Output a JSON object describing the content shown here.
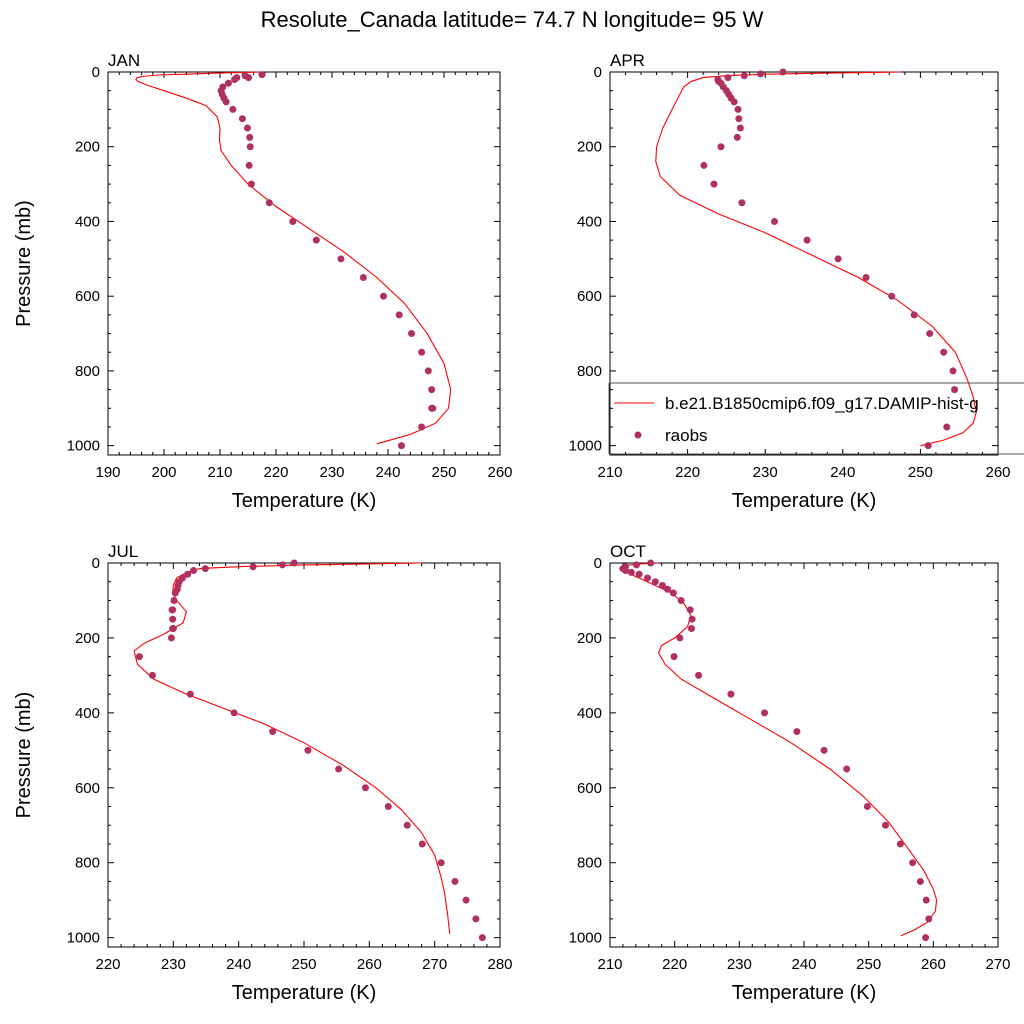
{
  "figure": {
    "title": "Resolute_Canada  latitude= 74.7 N longitude= 95 W"
  },
  "legend": {
    "model_label": "b.e21.B1850cmip6.f09_g17.DAMIP-hist-g",
    "obs_label": "raobs"
  },
  "colors": {
    "model_line": "#ff0000",
    "obs_marker": "#b03060"
  },
  "chart_data": [
    {
      "type": "scatter",
      "title": "JAN",
      "xlabel": "Temperature (K)",
      "ylabel": "Pressure (mb)",
      "xlim": [
        190,
        260
      ],
      "ylim": [
        1025,
        0
      ],
      "xticks": [
        190,
        200,
        210,
        220,
        230,
        240,
        250,
        260
      ],
      "yticks": [
        0,
        200,
        400,
        600,
        800,
        1000
      ],
      "series": [
        {
          "name": "b.e21.B1850cmip6.f09_g17.DAMIP-hist-g",
          "kind": "line",
          "x": [
            217.5,
            212,
            205,
            199,
            196,
            195.1,
            195.0,
            195.3,
            197,
            200,
            204,
            207.5,
            209.5,
            210.0,
            209.9,
            210.2,
            212,
            215,
            220,
            226,
            232,
            238,
            243,
            247,
            250,
            251.2,
            250.8,
            248.5,
            244,
            238
          ],
          "y": [
            0,
            2,
            5,
            8,
            12,
            16,
            20,
            25,
            35,
            50,
            70,
            90,
            120,
            150,
            180,
            210,
            250,
            300,
            360,
            420,
            480,
            550,
            620,
            700,
            780,
            850,
            900,
            940,
            970,
            995
          ]
        },
        {
          "name": "raobs",
          "kind": "scatter",
          "x": [
            217.5,
            214.5,
            215.1,
            213.0,
            212.6,
            211.5,
            210.5,
            210.2,
            210.4,
            210.7,
            211.1,
            212.3,
            214.0,
            214.9,
            215.3,
            215.4,
            215.2,
            215.6,
            218.8,
            223.0,
            227.2,
            231.6,
            235.6,
            239.2,
            242.0,
            244.2,
            246.0,
            247.2,
            247.8,
            248.0,
            247.8,
            246.0,
            242.4
          ],
          "y": [
            7,
            10,
            15,
            15,
            20,
            30,
            40,
            50,
            60,
            70,
            80,
            100,
            125,
            150,
            175,
            200,
            250,
            300,
            350,
            400,
            450,
            500,
            550,
            600,
            650,
            700,
            750,
            800,
            850,
            900,
            900,
            950,
            1000
          ]
        }
      ]
    },
    {
      "type": "scatter",
      "title": "APR",
      "xlabel": "Temperature (K)",
      "ylabel": "",
      "xlim": [
        210,
        260
      ],
      "ylim": [
        1025,
        0
      ],
      "xticks": [
        210,
        220,
        230,
        240,
        250,
        260
      ],
      "yticks": [
        0,
        200,
        400,
        600,
        800,
        1000
      ],
      "series": [
        {
          "name": "b.e21.B1850cmip6.f09_g17.DAMIP-hist-g",
          "kind": "line",
          "x": [
            247.5,
            238,
            230,
            225,
            222,
            220.5,
            219.5,
            219.0,
            218.0,
            216.8,
            216.0,
            215.9,
            216.5,
            219,
            224,
            230,
            236,
            242,
            247,
            251.5,
            254.5,
            256.0,
            256.8,
            257.2,
            256.8,
            255.5,
            253,
            250
          ],
          "y": [
            0,
            3,
            6,
            10,
            15,
            25,
            40,
            60,
            100,
            150,
            200,
            240,
            280,
            330,
            380,
            430,
            490,
            550,
            610,
            680,
            750,
            820,
            870,
            910,
            940,
            965,
            985,
            1000
          ]
        },
        {
          "name": "raobs",
          "kind": "scatter",
          "x": [
            232.3,
            229.4,
            227.3,
            225.2,
            223.9,
            224.0,
            224.3,
            224.6,
            225.0,
            225.3,
            225.6,
            226.0,
            226.5,
            226.6,
            226.8,
            226.4,
            224.3,
            222.1,
            223.4,
            227.0,
            231.2,
            235.4,
            239.4,
            243.0,
            246.3,
            249.2,
            251.2,
            253.0,
            254.2,
            254.4,
            253.4,
            251.0
          ],
          "y": [
            0,
            5,
            10,
            15,
            20,
            25,
            30,
            40,
            50,
            60,
            70,
            80,
            100,
            125,
            150,
            175,
            200,
            250,
            300,
            350,
            400,
            450,
            500,
            550,
            600,
            650,
            700,
            750,
            800,
            850,
            950,
            1000
          ]
        }
      ]
    },
    {
      "type": "scatter",
      "title": "JUL",
      "xlabel": "Temperature (K)",
      "ylabel": "Pressure (mb)",
      "xlim": [
        220,
        280
      ],
      "ylim": [
        1025,
        0
      ],
      "xticks": [
        220,
        230,
        240,
        250,
        260,
        270,
        280
      ],
      "yticks": [
        0,
        200,
        400,
        600,
        800,
        1000
      ],
      "series": [
        {
          "name": "b.e21.B1850cmip6.f09_g17.DAMIP-hist-g",
          "kind": "line",
          "x": [
            268,
            250,
            240,
            234,
            232,
            230.5,
            230.0,
            229.9,
            230.5,
            232.0,
            231.5,
            228.5,
            225.5,
            224.0,
            224.5,
            227,
            232,
            238,
            244,
            250,
            256,
            261,
            265,
            268,
            270,
            271,
            271.5,
            272,
            272.3
          ],
          "y": [
            0,
            5,
            10,
            15,
            25,
            40,
            60,
            80,
            100,
            130,
            160,
            190,
            215,
            235,
            270,
            310,
            350,
            390,
            430,
            480,
            540,
            600,
            660,
            720,
            780,
            840,
            880,
            940,
            990
          ]
        },
        {
          "name": "raobs",
          "kind": "scatter",
          "x": [
            248.5,
            246.7,
            242.2,
            234.9,
            233.1,
            232.2,
            231.4,
            230.9,
            230.7,
            230.6,
            230.3,
            230.1,
            229.9,
            229.8,
            229.9,
            230.0,
            229.9,
            229.7,
            224.8,
            226.8,
            232.6,
            239.3,
            245.2,
            250.6,
            255.3,
            259.4,
            262.9,
            265.8,
            268.1,
            271.0,
            273.1,
            274.8,
            276.3,
            277.3
          ],
          "y": [
            0,
            5,
            10,
            15,
            20,
            30,
            40,
            50,
            60,
            70,
            80,
            100,
            125,
            125,
            150,
            175,
            175,
            200,
            250,
            300,
            350,
            400,
            450,
            500,
            550,
            600,
            650,
            700,
            750,
            800,
            850,
            900,
            950,
            1000
          ]
        }
      ]
    },
    {
      "type": "scatter",
      "title": "OCT",
      "xlabel": "Temperature (K)",
      "ylabel": "",
      "xlim": [
        210,
        270
      ],
      "ylim": [
        1025,
        0
      ],
      "xticks": [
        210,
        220,
        230,
        240,
        250,
        260,
        270
      ],
      "yticks": [
        0,
        200,
        400,
        600,
        800,
        1000
      ],
      "series": [
        {
          "name": "b.e21.B1850cmip6.f09_g17.DAMIP-hist-g",
          "kind": "line",
          "x": [
            217.5,
            214,
            212,
            211.5,
            212.5,
            214.5,
            217,
            219.5,
            221.5,
            222.5,
            222.0,
            220.0,
            218.0,
            217.5,
            218.5,
            221,
            226,
            232,
            238,
            244,
            249,
            253,
            256,
            258.5,
            260.0,
            260.5,
            260.3,
            259,
            257,
            255
          ],
          "y": [
            0,
            3,
            8,
            15,
            25,
            40,
            60,
            80,
            110,
            140,
            170,
            200,
            220,
            240,
            270,
            310,
            360,
            420,
            480,
            550,
            620,
            690,
            760,
            820,
            870,
            900,
            930,
            960,
            980,
            995
          ]
        },
        {
          "name": "raobs",
          "kind": "scatter",
          "x": [
            216.3,
            214.1,
            212.4,
            212.0,
            212.4,
            213.3,
            214.5,
            215.8,
            217.0,
            218.1,
            218.9,
            219.8,
            221.0,
            222.4,
            222.7,
            222.6,
            220.8,
            219.9,
            223.7,
            228.7,
            233.9,
            238.9,
            243.1,
            246.6,
            249.8,
            252.6,
            254.9,
            256.8,
            258.0,
            258.9,
            259.3,
            258.8
          ],
          "y": [
            0,
            5,
            10,
            15,
            20,
            25,
            30,
            40,
            50,
            60,
            70,
            80,
            100,
            125,
            150,
            175,
            200,
            250,
            300,
            350,
            400,
            450,
            500,
            550,
            650,
            700,
            750,
            800,
            850,
            900,
            950,
            1000
          ]
        }
      ]
    }
  ]
}
